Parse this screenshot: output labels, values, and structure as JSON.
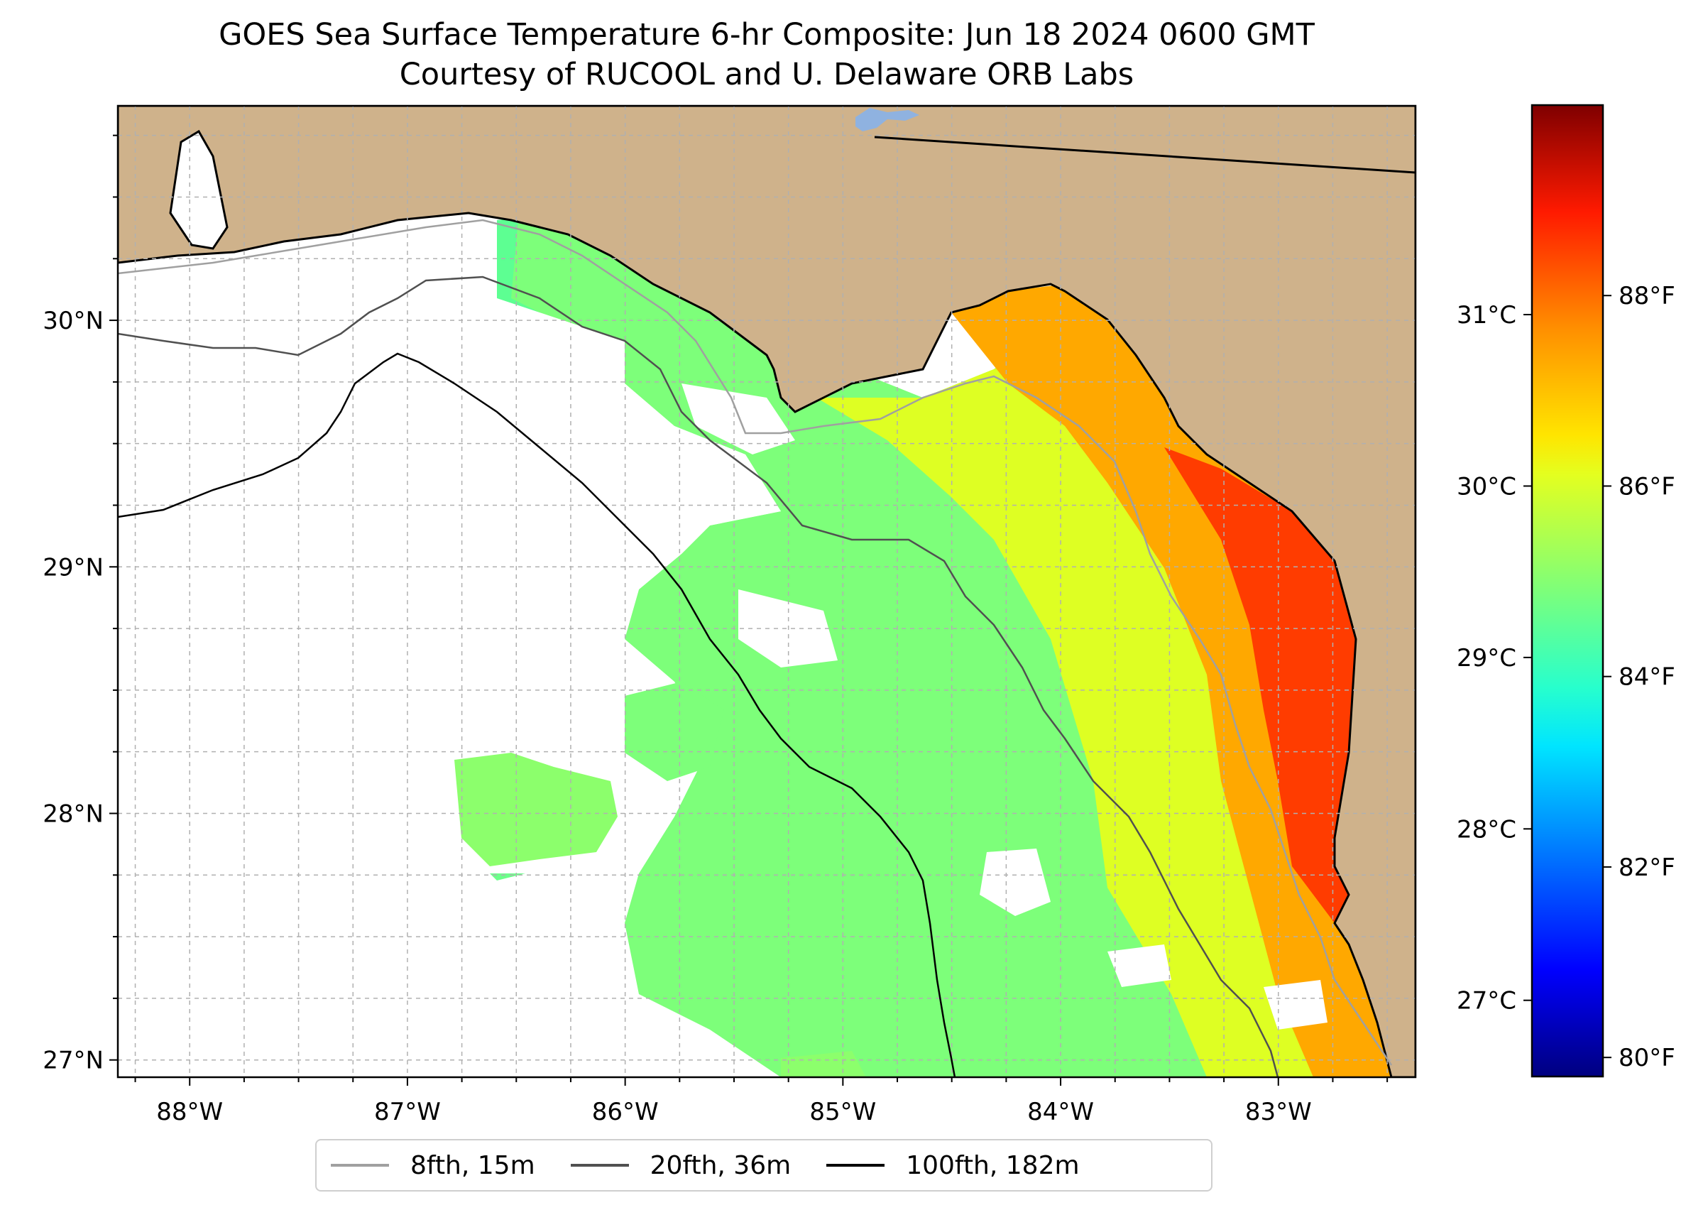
{
  "title": {
    "line1": "GOES Sea Surface Temperature 6-hr Composite: Jun 18 2024 0600 GMT",
    "line2": "Courtesy of RUCOOL and U. Delaware ORB Labs"
  },
  "map": {
    "extent": {
      "lon_min": -88.33,
      "lon_max": -82.37,
      "lat_min": 26.93,
      "lat_max": 30.87
    },
    "lat_ticks": [
      {
        "value": 30,
        "label": "30°N"
      },
      {
        "value": 29,
        "label": "29°N"
      },
      {
        "value": 28,
        "label": "28°N"
      },
      {
        "value": 27,
        "label": "27°N"
      }
    ],
    "lon_ticks": [
      {
        "value": -88,
        "label": "88°W"
      },
      {
        "value": -87,
        "label": "87°W"
      },
      {
        "value": -86,
        "label": "86°W"
      },
      {
        "value": -85,
        "label": "85°W"
      },
      {
        "value": -84,
        "label": "84°W"
      },
      {
        "value": -83,
        "label": "83°W"
      }
    ],
    "land_color": "#cfb28b",
    "water_nodata_color": "#ffffff",
    "gridlines": "dashed gray"
  },
  "colorbar": {
    "colormap": "jet",
    "range_F": [
      79.8,
      90.0
    ],
    "fahrenheit_ticks": [
      {
        "value": 88,
        "label": "88°F"
      },
      {
        "value": 86,
        "label": "86°F"
      },
      {
        "value": 84,
        "label": "84°F"
      },
      {
        "value": 82,
        "label": "82°F"
      },
      {
        "value": 80,
        "label": "80°F"
      }
    ],
    "celsius_ticks": [
      {
        "value": 31,
        "label": "31°C"
      },
      {
        "value": 30,
        "label": "30°C"
      },
      {
        "value": 29,
        "label": "29°C"
      },
      {
        "value": 28,
        "label": "28°C"
      },
      {
        "value": 27,
        "label": "27°C"
      }
    ]
  },
  "legend": {
    "items": [
      {
        "label": "8fth, 15m",
        "color": "#a0a0a0"
      },
      {
        "label": "20fth, 36m",
        "color": "#505050"
      },
      {
        "label": "100fth, 182m",
        "color": "#000000"
      }
    ]
  }
}
